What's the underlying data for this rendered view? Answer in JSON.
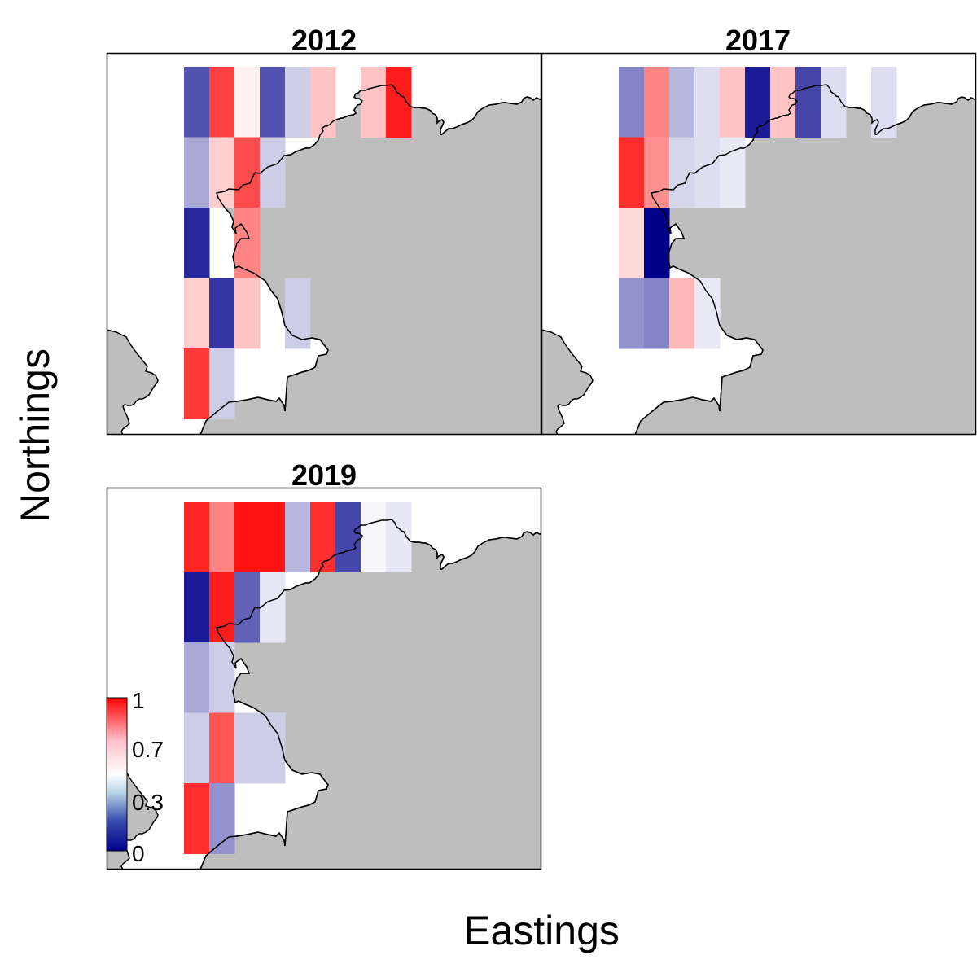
{
  "chart_data": {
    "type": "heatmap",
    "xlabel": "Eastings",
    "ylabel": "Northings",
    "color_scale": {
      "min": 0,
      "max": 1,
      "ticks": [
        "1",
        "0.7",
        "0.3",
        "0"
      ],
      "tick_values": [
        1,
        0.7,
        0.3,
        0
      ],
      "colors": [
        "#00008b",
        "#ffffff",
        "#ff0000"
      ]
    },
    "land_color": "#bebebe",
    "coastline_color": "#000000",
    "panels": [
      {
        "title": "2012",
        "cells": [
          {
            "col": 0,
            "row": 0,
            "value": 0.12
          },
          {
            "col": 1,
            "row": 0,
            "value": 0.86
          },
          {
            "col": 2,
            "row": 0,
            "value": 0.52
          },
          {
            "col": 3,
            "row": 0,
            "value": 0.12
          },
          {
            "col": 4,
            "row": 0,
            "value": 0.38
          },
          {
            "col": 5,
            "row": 0,
            "value": 0.6
          },
          {
            "col": 7,
            "row": 0,
            "value": 0.6
          },
          {
            "col": 8,
            "row": 0,
            "value": 0.94
          },
          {
            "col": 0,
            "row": 1,
            "value": 0.3
          },
          {
            "col": 1,
            "row": 1,
            "value": 0.58
          },
          {
            "col": 2,
            "row": 1,
            "value": 0.84
          },
          {
            "col": 3,
            "row": 1,
            "value": 0.38
          },
          {
            "col": 0,
            "row": 2,
            "value": 0.05
          },
          {
            "col": 2,
            "row": 2,
            "value": 0.72
          },
          {
            "col": 0,
            "row": 3,
            "value": 0.58
          },
          {
            "col": 1,
            "row": 3,
            "value": 0.07
          },
          {
            "col": 2,
            "row": 3,
            "value": 0.6
          },
          {
            "col": 4,
            "row": 3,
            "value": 0.38
          },
          {
            "col": 0,
            "row": 4,
            "value": 0.88
          },
          {
            "col": 1,
            "row": 4,
            "value": 0.38
          }
        ]
      },
      {
        "title": "2017",
        "cells": [
          {
            "col": 0,
            "row": 0,
            "value": 0.22
          },
          {
            "col": 1,
            "row": 0,
            "value": 0.72
          },
          {
            "col": 2,
            "row": 0,
            "value": 0.33
          },
          {
            "col": 3,
            "row": 0,
            "value": 0.42
          },
          {
            "col": 4,
            "row": 0,
            "value": 0.6
          },
          {
            "col": 5,
            "row": 0,
            "value": 0.03
          },
          {
            "col": 6,
            "row": 0,
            "value": 0.6
          },
          {
            "col": 7,
            "row": 0,
            "value": 0.1
          },
          {
            "col": 8,
            "row": 0,
            "value": 0.42
          },
          {
            "col": 10,
            "row": 0,
            "value": 0.42
          },
          {
            "col": 0,
            "row": 1,
            "value": 0.9
          },
          {
            "col": 1,
            "row": 1,
            "value": 0.7
          },
          {
            "col": 2,
            "row": 1,
            "value": 0.4
          },
          {
            "col": 3,
            "row": 1,
            "value": 0.42
          },
          {
            "col": 4,
            "row": 1,
            "value": 0.45
          },
          {
            "col": 0,
            "row": 2,
            "value": 0.56
          },
          {
            "col": 1,
            "row": 2,
            "value": 0.0
          },
          {
            "col": 0,
            "row": 3,
            "value": 0.25
          },
          {
            "col": 1,
            "row": 3,
            "value": 0.22
          },
          {
            "col": 2,
            "row": 3,
            "value": 0.62
          },
          {
            "col": 3,
            "row": 3,
            "value": 0.45
          }
        ]
      },
      {
        "title": "2019",
        "cells": [
          {
            "col": 0,
            "row": 0,
            "value": 0.92
          },
          {
            "col": 1,
            "row": 0,
            "value": 0.72
          },
          {
            "col": 2,
            "row": 0,
            "value": 0.96
          },
          {
            "col": 3,
            "row": 0,
            "value": 0.96
          },
          {
            "col": 4,
            "row": 0,
            "value": 0.33
          },
          {
            "col": 5,
            "row": 0,
            "value": 0.9
          },
          {
            "col": 6,
            "row": 0,
            "value": 0.1
          },
          {
            "col": 7,
            "row": 0,
            "value": 0.48
          },
          {
            "col": 8,
            "row": 0,
            "value": 0.44
          },
          {
            "col": 0,
            "row": 1,
            "value": 0.03
          },
          {
            "col": 1,
            "row": 1,
            "value": 0.94
          },
          {
            "col": 2,
            "row": 1,
            "value": 0.15
          },
          {
            "col": 3,
            "row": 1,
            "value": 0.44
          },
          {
            "col": 0,
            "row": 2,
            "value": 0.3
          },
          {
            "col": 1,
            "row": 2,
            "value": 0.38
          },
          {
            "col": 0,
            "row": 3,
            "value": 0.38
          },
          {
            "col": 1,
            "row": 3,
            "value": 0.82
          },
          {
            "col": 2,
            "row": 3,
            "value": 0.38
          },
          {
            "col": 3,
            "row": 3,
            "value": 0.38
          },
          {
            "col": 0,
            "row": 4,
            "value": 0.9
          },
          {
            "col": 1,
            "row": 4,
            "value": 0.25
          }
        ]
      }
    ]
  }
}
